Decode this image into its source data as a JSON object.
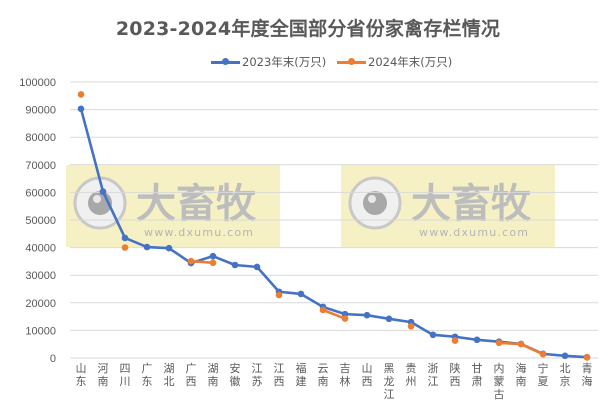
{
  "title": "2023-2024年度全国部分省份家禽存栏情况",
  "legend": {
    "series1": "2023年末(万只)",
    "series2": "2024年末(万只)"
  },
  "colors": {
    "series1": "#4472C4",
    "series2": "#ED7D31",
    "grid": "#D9D9D9",
    "text": "#595959",
    "watermark_bg": "#F5EEBA"
  },
  "watermark": {
    "brand": "大畜牧",
    "url": "www.dxumu.com"
  },
  "y_axis": {
    "ticks": [
      "0",
      "10000",
      "20000",
      "30000",
      "40000",
      "50000",
      "60000",
      "70000",
      "80000",
      "90000",
      "100000"
    ]
  },
  "chart_data": {
    "type": "line",
    "title": "2023-2024年度全国部分省份家禽存栏情况",
    "xlabel": "",
    "ylabel": "",
    "ylim": [
      0,
      100000
    ],
    "grid": true,
    "legend_position": "top",
    "categories": [
      "山东",
      "河南",
      "四川",
      "广东",
      "湖北",
      "广西",
      "湖南",
      "安徽",
      "江苏",
      "江西",
      "福建",
      "云南",
      "吉林",
      "山西",
      "黑龙江",
      "贵州",
      "浙江",
      "陕西",
      "甘肃",
      "内蒙古",
      "海南",
      "宁夏",
      "北京",
      "青海"
    ],
    "series": [
      {
        "name": "2023年末(万只)",
        "color": "#4472C4",
        "values": [
          90300,
          60300,
          43500,
          40200,
          39800,
          34400,
          36900,
          33700,
          33000,
          24000,
          23200,
          18500,
          15900,
          15500,
          14200,
          13000,
          8400,
          7700,
          6600,
          5900,
          5100,
          1500,
          800,
          300
        ]
      },
      {
        "name": "2024年末(万只)",
        "color": "#ED7D31",
        "values": [
          95500,
          null,
          40000,
          null,
          null,
          35100,
          34500,
          null,
          null,
          22800,
          null,
          17400,
          14300,
          null,
          null,
          11500,
          null,
          6300,
          null,
          5500,
          5000,
          1400,
          null,
          200
        ]
      }
    ]
  }
}
